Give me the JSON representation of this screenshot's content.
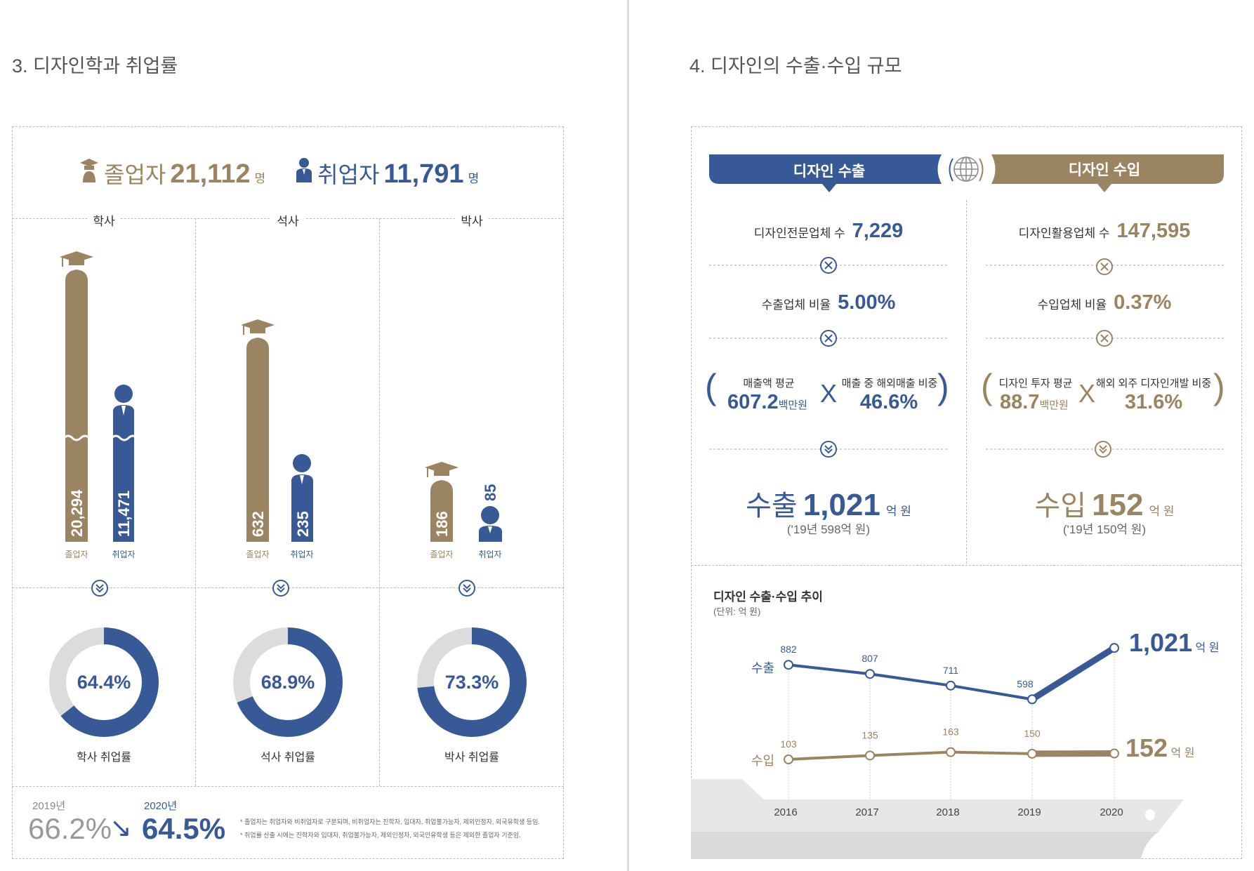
{
  "left": {
    "title": "3. 디자인학과 취업률",
    "summary": {
      "graduates_label": "졸업자",
      "graduates_value": "21,112",
      "graduates_unit": "명",
      "employed_label": "취업자",
      "employed_value": "11,791",
      "employed_unit": "명"
    },
    "degrees": [
      {
        "name": "학사",
        "graduates": "20,294",
        "employed": "11,471",
        "grad_label": "졸업자",
        "emp_label": "취업자",
        "rate": 64.4,
        "rate_text": "64.4%",
        "rate_label": "학사 취업률"
      },
      {
        "name": "석사",
        "graduates": "632",
        "employed": "235",
        "grad_label": "졸업자",
        "emp_label": "취업자",
        "rate": 68.9,
        "rate_text": "68.9%",
        "rate_label": "석사 취업률"
      },
      {
        "name": "박사",
        "graduates": "186",
        "employed": "85",
        "grad_label": "졸업자",
        "emp_label": "취업자",
        "rate": 73.3,
        "rate_text": "73.3%",
        "rate_label": "박사 취업률"
      }
    ],
    "compare": {
      "year_prev": "2019년",
      "value_prev": "66.2%",
      "arrow": "↘",
      "year_curr": "2020년",
      "value_curr": "64.5%"
    },
    "notes": [
      "* 졸업자는 취업자와 비취업자로 구분되며, 비취업자는 진학자, 입대자, 취업불가능자, 제외인정자, 외국유학생 등임.",
      "* 취업률 산출 시에는 진학자와 입대자, 취업불가능자, 제외인정자, 외국인유학생 등은 제외한 졸업자 기준임."
    ]
  },
  "right": {
    "title": "4. 디자인의 수출·수입 규모",
    "export": {
      "header": "디자인 수출",
      "firms_label": "디자인전문업체 수",
      "firms_value": "7,229",
      "ratio_label": "수출업체 비율",
      "ratio_value": "5.00%",
      "avg_label": "매출액 평균",
      "avg_value": "607.2",
      "avg_unit": "백만원",
      "share_label": "매출 중 해외매출 비중",
      "share_value": "46.6%",
      "total_label": "수출",
      "total_value": "1,021",
      "total_unit": "억 원",
      "prev": "('19년 598억 원)"
    },
    "import": {
      "header": "디자인 수입",
      "firms_label": "디자인활용업체 수",
      "firms_value": "147,595",
      "ratio_label": "수입업체 비율",
      "ratio_value": "0.37%",
      "avg_label": "디자인 투자 평균",
      "avg_value": "88.7",
      "avg_unit": "백만원",
      "share_label": "해외 외주 디자인개발 비중",
      "share_value": "31.6%",
      "total_label": "수입",
      "total_value": "152",
      "total_unit": "억 원",
      "prev": "('19년 150억 원)"
    },
    "colors": {
      "export": "#375a97",
      "import": "#9b8461"
    }
  },
  "chart_data": {
    "type": "line",
    "title": "디자인 수출·수입 추이",
    "unit": "(단위: 억 원)",
    "x": [
      "2016",
      "2017",
      "2018",
      "2019",
      "2020"
    ],
    "series": [
      {
        "name": "수출",
        "values": [
          882,
          807,
          711,
          598,
          1021
        ],
        "end_label": "1,021",
        "end_unit": "억 원"
      },
      {
        "name": "수입",
        "values": [
          103,
          135,
          163,
          150,
          152
        ],
        "end_label": "152",
        "end_unit": "억 원"
      }
    ]
  }
}
